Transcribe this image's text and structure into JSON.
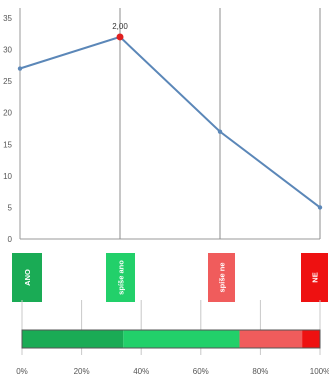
{
  "chart_data": [
    {
      "type": "line",
      "x": [
        1,
        2,
        3,
        4
      ],
      "series": [
        {
          "values": [
            27,
            32,
            17,
            5
          ],
          "color": "#5b87b8"
        }
      ],
      "ylim": [
        0,
        35
      ],
      "yticks": [
        "0",
        "5",
        "10",
        "15",
        "20",
        "25",
        "30",
        "35"
      ],
      "grid": "vertical",
      "annotations": [
        {
          "point": 1,
          "label": "2,00",
          "color": "#e02020"
        }
      ]
    },
    {
      "type": "bar",
      "orientation": "horizontal",
      "stacked": true,
      "series": [
        {
          "value": 34,
          "color": "#1aab55"
        },
        {
          "value": 39,
          "color": "#22d06a"
        },
        {
          "value": 21,
          "color": "#f05c5c"
        },
        {
          "value": 6,
          "color": "#ee1111"
        }
      ],
      "xlim": [
        0,
        100
      ],
      "xticks": [
        "0%",
        "20%",
        "40%",
        "60%",
        "80%",
        "100%"
      ]
    }
  ],
  "categories": [
    {
      "label": "ANO",
      "color": "#1aab55"
    },
    {
      "label": "spíše ano",
      "color": "#22d06a"
    },
    {
      "label": "spíše ne",
      "color": "#f05c5c"
    },
    {
      "label": "NE",
      "color": "#ee1111"
    }
  ]
}
